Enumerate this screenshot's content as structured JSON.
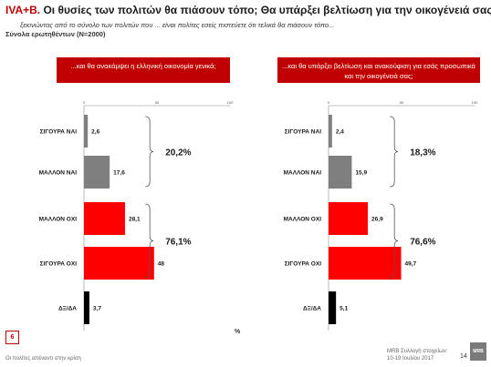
{
  "header": {
    "title_prefix": "IVA+B.",
    "title_rest": " Οι θυσίες των πολιτών θα πιάσουν τόπο; Θα υπάρξει βελτίωση για την οικογένειά σας;",
    "subtitle": "ξεκινώντας από το σύνολο των πολιτών που ... είναι πολίτες εσείς  πιστεύετε ότι τελικά θα πιάσουν τόπο...",
    "sample": "Σύνολα ερωτηθέντων (N=2000)"
  },
  "footer": {
    "slide_number": "6",
    "left_text": "Οι πολίτες απέναντι στην κρίση",
    "right_line1": "MRB Συλλογή στοιχείων:",
    "right_line2": "10-19 Ιουλίου 2017",
    "page": "14",
    "logo_text": "MRB",
    "percent_sign": "%"
  },
  "colors": {
    "red": "#ff0000",
    "gray": "#7f7f7f",
    "black": "#000000",
    "box_red": "#c00000"
  },
  "chart_data": [
    {
      "type": "bar",
      "orientation": "horizontal",
      "title": "...και θα ανακάμψει η ελληνική οικονομία γενικά;",
      "categories": [
        "ΣΙΓΟΥΡΑ ΝΑΙ",
        "ΜΑΛΛΟΝ ΝΑΙ",
        "ΜΑΛΛΟΝ ΟΧΙ",
        "ΣΙΓΟΥΡΑ ΟΧΙ",
        "ΔΞ/ΔΑ"
      ],
      "values": [
        2.6,
        17.6,
        28.1,
        48,
        3.7
      ],
      "value_labels": [
        "2,6",
        "17,6",
        "28,1",
        "48",
        "3,7"
      ],
      "bar_colors": [
        "#7f7f7f",
        "#7f7f7f",
        "#ff0000",
        "#ff0000",
        "#000000"
      ],
      "xlim": [
        0,
        100
      ],
      "tick_labels": [
        "0",
        "50",
        "100"
      ],
      "groups": [
        {
          "label": "20,2%",
          "from": 0,
          "to": 1
        },
        {
          "label": "76,1%",
          "from": 2,
          "to": 3
        }
      ]
    },
    {
      "type": "bar",
      "orientation": "horizontal",
      "title": "...και θα υπάρξει βελτίωση και ανακούφιση για εσάς προσωπικά και την οικογένειά σας;",
      "categories": [
        "ΣΙΓΟΥΡΑ ΝΑΙ",
        "ΜΑΛΛΟΝ ΝΑΙ",
        "ΜΑΛΛΟΝ ΟΧΙ",
        "ΣΙΓΟΥΡΑ ΟΧΙ",
        "ΔΞ/ΔΑ"
      ],
      "values": [
        2.4,
        15.9,
        26.9,
        49.7,
        5.1
      ],
      "value_labels": [
        "2,4",
        "15,9",
        "26,9",
        "49,7",
        "5,1"
      ],
      "bar_colors": [
        "#7f7f7f",
        "#7f7f7f",
        "#ff0000",
        "#ff0000",
        "#000000"
      ],
      "xlim": [
        0,
        100
      ],
      "tick_labels": [
        "0",
        "50",
        "100"
      ],
      "groups": [
        {
          "label": "18,3%",
          "from": 0,
          "to": 1
        },
        {
          "label": "76,6%",
          "from": 2,
          "to": 3
        }
      ]
    }
  ]
}
